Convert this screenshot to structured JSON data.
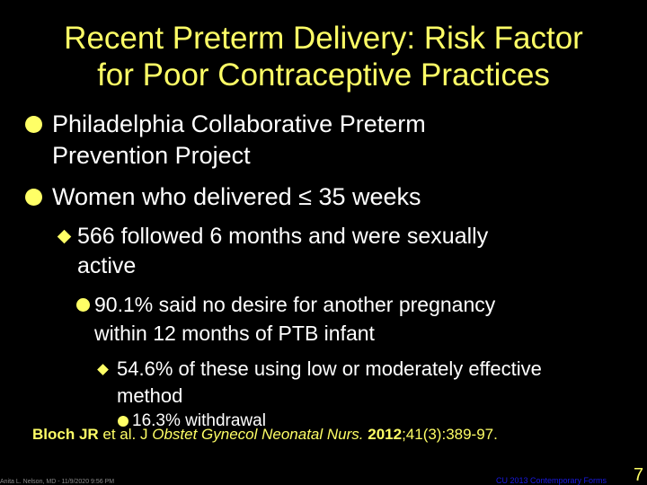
{
  "title": {
    "line1": "Recent Preterm Delivery: Risk Factor",
    "line2": "for Poor Contraceptive Practices"
  },
  "bullets": {
    "l1_a_line1": "Philadelphia Collaborative Preterm",
    "l1_a_line2": "Prevention Project",
    "l1_b": "Women who delivered ≤ 35 weeks",
    "l2_line1": "566 followed 6 months and were sexually",
    "l2_line2": "active",
    "l3_line1": "90.1% said no desire for another pregnancy",
    "l3_line2": "within 12 months of PTB infant",
    "l4_line1": "54.6% of these using low or moderately effective",
    "l4_line2": "method",
    "l5": "16.3% withdrawal"
  },
  "citation": {
    "authors": "Bloch JR",
    "etal": " et al. J ",
    "journal": "Obstet Gynecol Neonatal Nurs.",
    "year": "2012",
    "rest": ";41(3):389-97."
  },
  "footer": {
    "left": "Anita L. Nelson, MD - 11/9/2020 9:56 PM",
    "right": "CU 2013 Contemporary Forms",
    "page_number": "7"
  },
  "colors": {
    "background": "#000000",
    "title": "#ffff66",
    "body_text": "#ffffff",
    "bullet": "#ffff66",
    "footer_right": "#1a1ae6"
  },
  "icons": {
    "level1": "filled-circle-bullet",
    "level2": "diamond-bullet",
    "level3": "filled-circle-bullet",
    "level4": "diamond-bullet",
    "level5": "filled-circle-bullet"
  }
}
